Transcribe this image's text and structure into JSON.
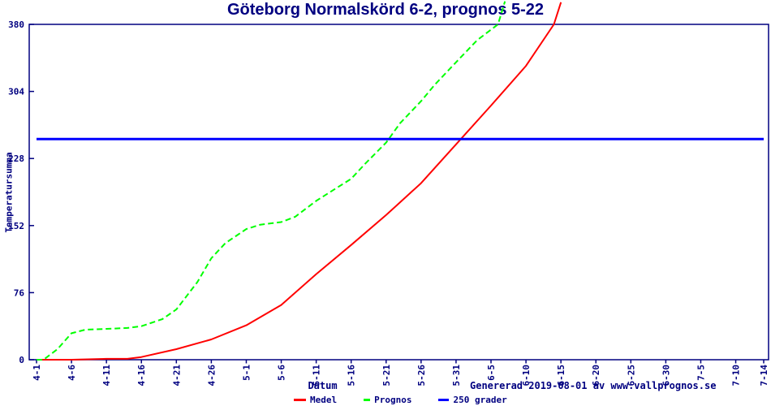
{
  "title": "Göteborg Normalskörd 6-2, prognos 5-22",
  "footer": {
    "generated": "Genererad 2019-08-01 av www.vallprognos.se"
  },
  "colors": {
    "axis_and_text": "#000080",
    "medel_line": "#ff0000",
    "prognos_line": "#00ff00",
    "reference_line": "#0000ff",
    "background": "#ffffff"
  },
  "chart_data": {
    "type": "line",
    "title": "Göteborg Normalskörd 6-2, prognos 5-22",
    "xlabel": "Datum",
    "ylabel": "Temperatursumma",
    "ylim": [
      0,
      380
    ],
    "y_ticks": [
      0,
      76,
      152,
      228,
      304,
      380
    ],
    "x_ticks": [
      "4-1",
      "4-6",
      "4-11",
      "4-16",
      "4-21",
      "4-26",
      "5-1",
      "5-6",
      "5-11",
      "5-16",
      "5-21",
      "5-26",
      "5-31",
      "6-5",
      "6-10",
      "6-15",
      "6-20",
      "6-25",
      "6-30",
      "7-5",
      "7-10",
      "7-14"
    ],
    "grid": false,
    "legend_position": "bottom-center",
    "series": [
      {
        "name": "Medel",
        "color": "#ff0000",
        "style": "solid",
        "points": [
          [
            "4-1",
            0
          ],
          [
            "4-6",
            0
          ],
          [
            "4-11",
            1
          ],
          [
            "4-14",
            1
          ],
          [
            "4-16",
            3
          ],
          [
            "4-21",
            12
          ],
          [
            "4-26",
            23
          ],
          [
            "5-1",
            39
          ],
          [
            "5-6",
            62
          ],
          [
            "5-11",
            97
          ],
          [
            "5-16",
            130
          ],
          [
            "5-21",
            164
          ],
          [
            "5-26",
            200
          ],
          [
            "5-31",
            244
          ],
          [
            "6-5",
            288
          ],
          [
            "6-10",
            333
          ],
          [
            "6-14",
            380
          ],
          [
            "6-15",
            405
          ]
        ]
      },
      {
        "name": "Prognos",
        "color": "#00ff00",
        "style": "dashed",
        "points": [
          [
            "4-1",
            0
          ],
          [
            "4-2",
            0
          ],
          [
            "4-4",
            12
          ],
          [
            "4-6",
            30
          ],
          [
            "4-8",
            34
          ],
          [
            "4-11",
            35
          ],
          [
            "4-14",
            36
          ],
          [
            "4-16",
            38
          ],
          [
            "4-19",
            46
          ],
          [
            "4-21",
            57
          ],
          [
            "4-24",
            88
          ],
          [
            "4-26",
            115
          ],
          [
            "4-28",
            132
          ],
          [
            "5-1",
            148
          ],
          [
            "5-3",
            153
          ],
          [
            "5-6",
            156
          ],
          [
            "5-8",
            162
          ],
          [
            "5-11",
            180
          ],
          [
            "5-13",
            190
          ],
          [
            "5-16",
            205
          ],
          [
            "5-18",
            222
          ],
          [
            "5-21",
            246
          ],
          [
            "5-23",
            268
          ],
          [
            "5-26",
            293
          ],
          [
            "5-28",
            312
          ],
          [
            "5-31",
            337
          ],
          [
            "6-3",
            362
          ],
          [
            "6-6",
            380
          ],
          [
            "6-7",
            406
          ]
        ]
      },
      {
        "name": "250 grader",
        "color": "#0000ff",
        "style": "solid",
        "constant_value": 250,
        "x_span": [
          "4-1",
          "7-14"
        ]
      }
    ]
  }
}
